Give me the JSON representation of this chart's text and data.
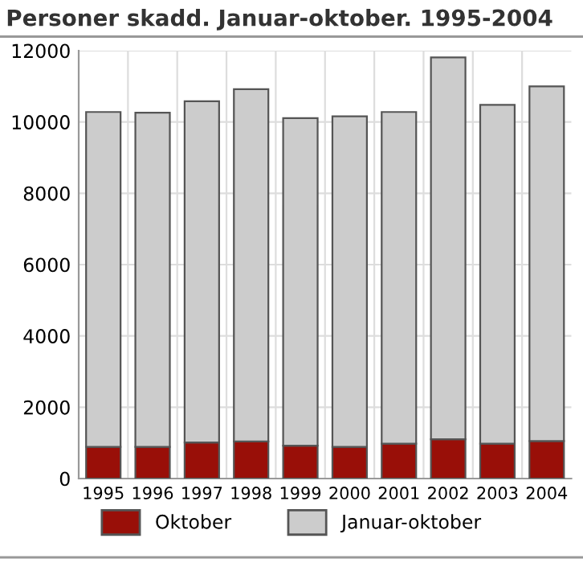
{
  "chart_data": {
    "type": "bar",
    "title": "Personer skadd. Januar-oktober. 1995-2004",
    "categories": [
      "1995",
      "1996",
      "1997",
      "1998",
      "1999",
      "2000",
      "2001",
      "2002",
      "2003",
      "2004"
    ],
    "stacked": true,
    "series": [
      {
        "name": "Oktober",
        "color": "#990f08",
        "values": [
          890,
          890,
          1010,
          1040,
          920,
          890,
          980,
          1100,
          980,
          1050
        ]
      },
      {
        "name": "Januar-oktober",
        "color": "#cccccc",
        "values": [
          9390,
          9370,
          9570,
          9880,
          9190,
          9270,
          9300,
          10710,
          9500,
          9950
        ]
      }
    ],
    "ylim": [
      0,
      12000
    ],
    "yticks": [
      0,
      2000,
      4000,
      6000,
      8000,
      10000,
      12000
    ],
    "grid": true,
    "legend": "bottom"
  }
}
